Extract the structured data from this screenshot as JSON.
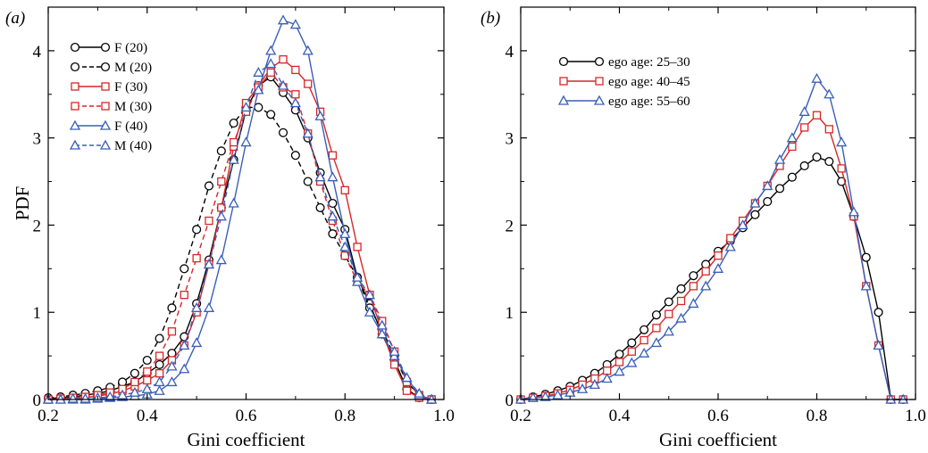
{
  "figure": {
    "panel_a_letter": "(a)",
    "panel_b_letter": "(b)"
  },
  "chart_data": [
    {
      "type": "line",
      "panel": "a",
      "title": "",
      "xlabel": "Gini coefficient",
      "ylabel": "PDF",
      "xlim": [
        0.2,
        1.0
      ],
      "ylim": [
        0,
        4.5
      ],
      "xticks": [
        0.2,
        0.4,
        0.6,
        0.8,
        1.0
      ],
      "xtick_labels": [
        "0.2",
        "0.4",
        "0.6",
        "0.8",
        "1.0"
      ],
      "yticks": [
        0,
        1,
        2,
        3,
        4
      ],
      "ytick_labels": [
        "0",
        "1",
        "2",
        "3",
        "4"
      ],
      "grid": false,
      "legend_position": "top-left",
      "series": [
        {
          "name": "F (20)",
          "color": "#000000",
          "dash": "solid",
          "marker": "circle",
          "x": [
            0.2,
            0.225,
            0.25,
            0.275,
            0.3,
            0.325,
            0.35,
            0.375,
            0.4,
            0.425,
            0.45,
            0.475,
            0.5,
            0.525,
            0.55,
            0.575,
            0.6,
            0.625,
            0.65,
            0.675,
            0.7,
            0.725,
            0.75,
            0.775,
            0.8,
            0.825,
            0.85,
            0.875,
            0.9,
            0.925,
            0.95,
            0.975
          ],
          "y": [
            0.01,
            0.02,
            0.03,
            0.05,
            0.07,
            0.1,
            0.15,
            0.2,
            0.3,
            0.4,
            0.53,
            0.72,
            1.1,
            1.6,
            2.2,
            2.75,
            3.32,
            3.6,
            3.7,
            3.52,
            3.32,
            3.0,
            2.6,
            2.25,
            1.95,
            1.4,
            1.1,
            0.75,
            0.45,
            0.12,
            0.02,
            0.0
          ]
        },
        {
          "name": "M (20)",
          "color": "#000000",
          "dash": "dashed",
          "marker": "circle",
          "x": [
            0.2,
            0.225,
            0.25,
            0.275,
            0.3,
            0.325,
            0.35,
            0.375,
            0.4,
            0.425,
            0.45,
            0.475,
            0.5,
            0.525,
            0.55,
            0.575,
            0.6,
            0.625,
            0.65,
            0.675,
            0.7,
            0.725,
            0.75,
            0.775,
            0.8,
            0.825,
            0.85,
            0.875,
            0.9,
            0.925,
            0.95,
            0.975
          ],
          "y": [
            0.02,
            0.03,
            0.05,
            0.07,
            0.1,
            0.14,
            0.2,
            0.3,
            0.45,
            0.7,
            1.05,
            1.5,
            1.95,
            2.45,
            2.85,
            3.17,
            3.35,
            3.35,
            3.27,
            3.06,
            2.8,
            2.5,
            2.2,
            1.9,
            1.65,
            1.4,
            1.05,
            0.8,
            0.5,
            0.2,
            0.05,
            0.0
          ]
        },
        {
          "name": "F (30)",
          "color": "#d62728",
          "dash": "solid",
          "marker": "square",
          "x": [
            0.2,
            0.225,
            0.25,
            0.275,
            0.3,
            0.325,
            0.35,
            0.375,
            0.4,
            0.425,
            0.45,
            0.475,
            0.5,
            0.525,
            0.55,
            0.575,
            0.6,
            0.625,
            0.65,
            0.675,
            0.7,
            0.725,
            0.75,
            0.775,
            0.8,
            0.825,
            0.85,
            0.875,
            0.9,
            0.925,
            0.95,
            0.975
          ],
          "y": [
            0.0,
            0.01,
            0.01,
            0.02,
            0.04,
            0.06,
            0.1,
            0.15,
            0.22,
            0.3,
            0.45,
            0.62,
            1.0,
            1.55,
            2.2,
            2.9,
            3.4,
            3.6,
            3.8,
            3.9,
            3.78,
            3.62,
            3.3,
            2.8,
            2.4,
            1.75,
            1.2,
            0.78,
            0.4,
            0.1,
            0.02,
            0.0
          ]
        },
        {
          "name": "M (30)",
          "color": "#d62728",
          "dash": "dashed",
          "marker": "square",
          "x": [
            0.2,
            0.225,
            0.25,
            0.275,
            0.3,
            0.325,
            0.35,
            0.375,
            0.4,
            0.425,
            0.45,
            0.475,
            0.5,
            0.525,
            0.55,
            0.575,
            0.6,
            0.625,
            0.65,
            0.675,
            0.7,
            0.725,
            0.75,
            0.775,
            0.8,
            0.825,
            0.85,
            0.875,
            0.9,
            0.925,
            0.95,
            0.975
          ],
          "y": [
            0.0,
            0.01,
            0.02,
            0.03,
            0.05,
            0.08,
            0.12,
            0.2,
            0.32,
            0.5,
            0.78,
            1.2,
            1.62,
            2.05,
            2.5,
            2.95,
            3.3,
            3.58,
            3.75,
            3.58,
            3.5,
            3.05,
            2.5,
            2.05,
            1.65,
            1.35,
            1.2,
            0.9,
            0.55,
            0.2,
            0.05,
            0.0
          ]
        },
        {
          "name": "F (40)",
          "color": "#3a5fb8",
          "dash": "solid",
          "marker": "triangle",
          "x": [
            0.2,
            0.225,
            0.25,
            0.275,
            0.3,
            0.325,
            0.35,
            0.375,
            0.4,
            0.425,
            0.45,
            0.475,
            0.5,
            0.525,
            0.55,
            0.575,
            0.6,
            0.625,
            0.65,
            0.675,
            0.7,
            0.725,
            0.75,
            0.775,
            0.8,
            0.825,
            0.85,
            0.875,
            0.9,
            0.925,
            0.95,
            0.975
          ],
          "y": [
            0.0,
            0.0,
            0.0,
            0.0,
            0.01,
            0.02,
            0.03,
            0.04,
            0.06,
            0.1,
            0.2,
            0.35,
            0.65,
            1.05,
            1.6,
            2.25,
            2.95,
            3.55,
            4.0,
            4.35,
            4.3,
            4.0,
            3.25,
            2.55,
            1.9,
            1.35,
            1.0,
            0.75,
            0.5,
            0.25,
            0.05,
            0.0
          ]
        },
        {
          "name": "M (40)",
          "color": "#3a5fb8",
          "dash": "dashed",
          "marker": "triangle",
          "x": [
            0.2,
            0.225,
            0.25,
            0.275,
            0.3,
            0.325,
            0.35,
            0.375,
            0.4,
            0.425,
            0.45,
            0.475,
            0.5,
            0.525,
            0.55,
            0.575,
            0.6,
            0.625,
            0.65,
            0.675,
            0.7,
            0.725,
            0.75,
            0.775,
            0.8,
            0.825,
            0.85,
            0.875,
            0.9,
            0.925,
            0.95,
            0.975
          ],
          "y": [
            0.0,
            0.0,
            0.01,
            0.01,
            0.02,
            0.03,
            0.05,
            0.08,
            0.12,
            0.2,
            0.38,
            0.62,
            1.05,
            1.55,
            2.1,
            2.75,
            3.35,
            3.75,
            3.85,
            3.6,
            3.4,
            3.05,
            2.55,
            2.1,
            1.75,
            1.4,
            1.2,
            0.85,
            0.55,
            0.25,
            0.07,
            0.0
          ]
        }
      ]
    },
    {
      "type": "line",
      "panel": "b",
      "title": "",
      "xlabel": "Gini coefficient",
      "ylabel": "",
      "xlim": [
        0.2,
        1.0
      ],
      "ylim": [
        0,
        4.5
      ],
      "xticks": [
        0.2,
        0.4,
        0.6,
        0.8,
        1.0
      ],
      "xtick_labels": [
        "0.2",
        "0.4",
        "0.6",
        "0.8",
        "1.0"
      ],
      "yticks": [
        0,
        1,
        2,
        3,
        4
      ],
      "ytick_labels": [
        "0",
        "1",
        "2",
        "3",
        "4"
      ],
      "grid": false,
      "legend_position": "top-left",
      "series": [
        {
          "name": "ego age: 25–30",
          "color": "#000000",
          "dash": "solid",
          "marker": "circle",
          "x": [
            0.2,
            0.225,
            0.25,
            0.275,
            0.3,
            0.325,
            0.35,
            0.375,
            0.4,
            0.425,
            0.45,
            0.475,
            0.5,
            0.525,
            0.55,
            0.575,
            0.6,
            0.625,
            0.65,
            0.675,
            0.7,
            0.725,
            0.75,
            0.775,
            0.8,
            0.825,
            0.85,
            0.875,
            0.9,
            0.925,
            0.95,
            0.975
          ],
          "y": [
            0.0,
            0.03,
            0.06,
            0.1,
            0.15,
            0.22,
            0.3,
            0.4,
            0.52,
            0.65,
            0.8,
            0.97,
            1.12,
            1.27,
            1.42,
            1.55,
            1.7,
            1.82,
            1.97,
            2.12,
            2.27,
            2.42,
            2.55,
            2.68,
            2.78,
            2.73,
            2.5,
            2.1,
            1.63,
            1.0,
            0.0,
            0.0
          ]
        },
        {
          "name": "ego age: 40–45",
          "color": "#d62728",
          "dash": "solid",
          "marker": "square",
          "x": [
            0.2,
            0.225,
            0.25,
            0.275,
            0.3,
            0.325,
            0.35,
            0.375,
            0.4,
            0.425,
            0.45,
            0.475,
            0.5,
            0.525,
            0.55,
            0.575,
            0.6,
            0.625,
            0.65,
            0.675,
            0.7,
            0.725,
            0.75,
            0.775,
            0.8,
            0.825,
            0.85,
            0.875,
            0.9,
            0.925,
            0.95,
            0.975
          ],
          "y": [
            0.0,
            0.02,
            0.04,
            0.07,
            0.11,
            0.17,
            0.24,
            0.33,
            0.43,
            0.55,
            0.68,
            0.82,
            0.98,
            1.13,
            1.3,
            1.47,
            1.65,
            1.85,
            2.05,
            2.25,
            2.45,
            2.68,
            2.9,
            3.12,
            3.26,
            3.1,
            2.65,
            2.1,
            1.3,
            0.62,
            0.0,
            0.0
          ]
        },
        {
          "name": "ego age: 55–60",
          "color": "#3a5fb8",
          "dash": "solid",
          "marker": "triangle",
          "x": [
            0.2,
            0.225,
            0.25,
            0.275,
            0.3,
            0.325,
            0.35,
            0.375,
            0.4,
            0.425,
            0.45,
            0.475,
            0.5,
            0.525,
            0.55,
            0.575,
            0.6,
            0.625,
            0.65,
            0.675,
            0.7,
            0.725,
            0.75,
            0.775,
            0.8,
            0.825,
            0.85,
            0.875,
            0.9,
            0.925,
            0.95,
            0.975
          ],
          "y": [
            0.0,
            0.02,
            0.03,
            0.05,
            0.08,
            0.12,
            0.17,
            0.24,
            0.32,
            0.42,
            0.53,
            0.65,
            0.78,
            0.93,
            1.1,
            1.3,
            1.5,
            1.75,
            2.0,
            2.25,
            2.45,
            2.75,
            3.0,
            3.3,
            3.68,
            3.5,
            2.95,
            2.15,
            1.3,
            0.62,
            0.0,
            0.0
          ]
        }
      ]
    }
  ]
}
